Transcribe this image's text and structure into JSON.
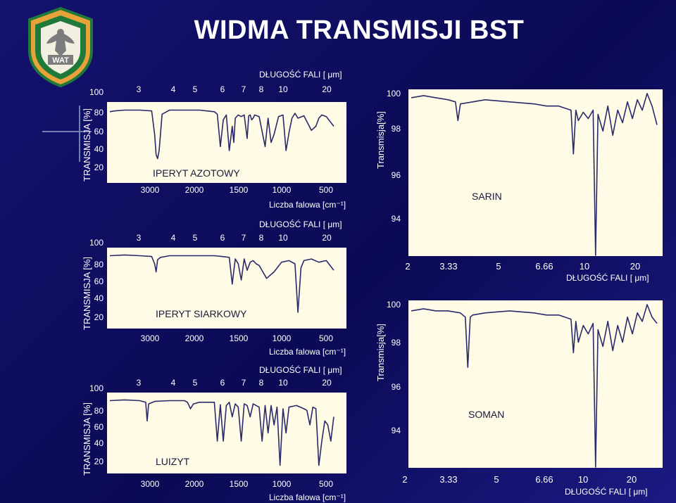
{
  "page": {
    "title": "WIDMA TRANSMISJI  BST",
    "logo_text": "WAT",
    "colors": {
      "background": "#0b0a55",
      "plot_bg": "#fffbe6",
      "trace": "#2a2a6a",
      "text": "#ffffff",
      "logo_green": "#1f7a3a",
      "logo_orange": "#e8a23a"
    }
  },
  "chart_data": [
    {
      "type": "line",
      "annotation": "IPERYT  AZOTOWY",
      "ylabel": "TRANSMISJA [%]",
      "yticks": [
        "100",
        "80",
        "60",
        "40",
        "20"
      ],
      "top_axis_title": "DŁUGOŚĆ  FALI [ μm]",
      "top_ticks": [
        "3",
        "4",
        "5",
        "6",
        "7",
        "8",
        "10",
        "20"
      ],
      "bottom_ticks": [
        "3000",
        "2000",
        "1500",
        "1000",
        "500"
      ],
      "xlabel": "Liczba falowa [cm⁻¹]",
      "ylim": [
        0,
        100
      ],
      "x": [
        0.0,
        0.03,
        0.1,
        0.2,
        0.28,
        0.3,
        0.31,
        0.32,
        0.33,
        0.35,
        0.38,
        0.4,
        0.5,
        0.6,
        0.65,
        0.7,
        0.72,
        0.74,
        0.76,
        0.78,
        0.8,
        0.82,
        0.83,
        0.84,
        0.86,
        0.88,
        0.9,
        0.92,
        0.93,
        0.94,
        0.95,
        0.96,
        0.97,
        1.0,
        1.04,
        1.06,
        1.08,
        1.1,
        1.13,
        1.16,
        1.18,
        1.2,
        1.22,
        1.24,
        1.26,
        1.3,
        1.35,
        1.38,
        1.4,
        1.42,
        1.45,
        1.5
      ],
      "y": [
        88,
        89,
        90,
        90,
        89,
        60,
        35,
        30,
        40,
        85,
        88,
        90,
        90,
        90,
        89,
        88,
        85,
        45,
        78,
        84,
        40,
        70,
        50,
        80,
        84,
        82,
        84,
        55,
        83,
        84,
        78,
        80,
        84,
        82,
        45,
        80,
        50,
        60,
        82,
        84,
        40,
        62,
        80,
        86,
        80,
        83,
        65,
        70,
        80,
        84,
        82,
        70
      ]
    },
    {
      "type": "line",
      "annotation": "IPERYT  SIARKOWY",
      "ylabel": "TRANSMISJA [%]",
      "yticks": [
        "100",
        "80",
        "60",
        "40",
        "20"
      ],
      "top_axis_title": "DŁUGOŚĆ  FALI [ μm]",
      "top_ticks": [
        "3",
        "4",
        "5",
        "6",
        "7",
        "8",
        "10",
        "20"
      ],
      "bottom_ticks": [
        "3000",
        "2000",
        "1500",
        "1000",
        "500"
      ],
      "xlabel": "Liczba falowa [cm⁻¹]",
      "ylim": [
        0,
        100
      ],
      "x": [
        0.0,
        0.1,
        0.2,
        0.28,
        0.3,
        0.31,
        0.32,
        0.34,
        0.4,
        0.5,
        0.6,
        0.7,
        0.75,
        0.8,
        0.82,
        0.84,
        0.86,
        0.88,
        0.9,
        0.92,
        0.94,
        0.96,
        0.98,
        1.0,
        1.05,
        1.1,
        1.15,
        1.2,
        1.24,
        1.26,
        1.28,
        1.3,
        1.35,
        1.4,
        1.45,
        1.5
      ],
      "y": [
        90,
        91,
        90,
        89,
        80,
        70,
        85,
        88,
        90,
        90,
        90,
        90,
        89,
        88,
        55,
        86,
        80,
        60,
        86,
        72,
        82,
        84,
        80,
        78,
        62,
        70,
        82,
        84,
        80,
        20,
        75,
        84,
        86,
        82,
        84,
        72
      ]
    },
    {
      "type": "line",
      "annotation": "LUIZYT",
      "ylabel": "TRANSMISJA [%]",
      "yticks": [
        "100",
        "80",
        "60",
        "40",
        "20"
      ],
      "top_axis_title": "DŁUGOŚĆ  FALI [ μm]",
      "top_ticks": [
        "3",
        "4",
        "5",
        "6",
        "7",
        "8",
        "10",
        "20"
      ],
      "bottom_ticks": [
        "3000",
        "2000",
        "1500",
        "1000",
        "500"
      ],
      "xlabel": "Liczba falowa [cm⁻¹]",
      "ylim": [
        0,
        100
      ],
      "x": [
        0.0,
        0.1,
        0.2,
        0.24,
        0.25,
        0.26,
        0.3,
        0.4,
        0.5,
        0.52,
        0.54,
        0.56,
        0.6,
        0.7,
        0.72,
        0.74,
        0.76,
        0.78,
        0.8,
        0.82,
        0.84,
        0.86,
        0.88,
        0.9,
        0.92,
        0.94,
        0.96,
        0.98,
        1.0,
        1.02,
        1.04,
        1.06,
        1.08,
        1.1,
        1.12,
        1.14,
        1.16,
        1.18,
        1.2,
        1.25,
        1.3,
        1.32,
        1.34,
        1.36,
        1.38,
        1.4,
        1.42,
        1.44,
        1.46,
        1.48,
        1.5
      ],
      "y": [
        90,
        91,
        90,
        88,
        65,
        86,
        89,
        90,
        90,
        88,
        80,
        86,
        88,
        88,
        40,
        85,
        40,
        84,
        88,
        70,
        86,
        82,
        40,
        86,
        84,
        70,
        86,
        84,
        82,
        40,
        84,
        50,
        84,
        60,
        82,
        10,
        80,
        50,
        82,
        84,
        80,
        78,
        60,
        82,
        80,
        10,
        40,
        65,
        60,
        40,
        70
      ]
    },
    {
      "type": "line",
      "annotation": "SARIN",
      "ylabel": "Transmisja[%]",
      "yticks": [
        "100",
        "98",
        "96",
        "94"
      ],
      "xticks": [
        "2",
        "3.33",
        "5",
        "6.66",
        "10",
        "20"
      ],
      "xlabel": "DŁUGOŚĆ  FALI [ μm]",
      "ylim": [
        92,
        100
      ],
      "x": [
        0.0,
        0.05,
        0.1,
        0.15,
        0.18,
        0.19,
        0.2,
        0.25,
        0.3,
        0.4,
        0.5,
        0.55,
        0.6,
        0.65,
        0.66,
        0.67,
        0.68,
        0.7,
        0.72,
        0.74,
        0.75,
        0.76,
        0.78,
        0.8,
        0.82,
        0.84,
        0.86,
        0.88,
        0.9,
        0.92,
        0.94,
        0.96,
        0.98,
        1.0
      ],
      "y": [
        99.6,
        99.7,
        99.6,
        99.5,
        99.4,
        98.5,
        99.3,
        99.4,
        99.5,
        99.4,
        99.3,
        99.2,
        99.2,
        99.0,
        96.9,
        99.0,
        98.5,
        98.9,
        98.6,
        99.0,
        92.0,
        98.8,
        98.0,
        99.2,
        97.8,
        99.0,
        98.4,
        99.4,
        98.6,
        99.5,
        99.0,
        99.8,
        99.2,
        98.3
      ]
    },
    {
      "type": "line",
      "annotation": "SOMAN",
      "ylabel": "Transmisja[%]",
      "yticks": [
        "100",
        "98",
        "96",
        "94"
      ],
      "xticks": [
        "2",
        "3.33",
        "5",
        "6.66",
        "10",
        "20"
      ],
      "xlabel": "DŁUGOŚĆ  FALI [ μm]",
      "ylim": [
        92,
        100
      ],
      "x": [
        0.0,
        0.05,
        0.1,
        0.15,
        0.2,
        0.22,
        0.23,
        0.24,
        0.25,
        0.3,
        0.4,
        0.5,
        0.55,
        0.6,
        0.65,
        0.66,
        0.67,
        0.68,
        0.7,
        0.72,
        0.74,
        0.75,
        0.76,
        0.78,
        0.8,
        0.82,
        0.84,
        0.86,
        0.88,
        0.9,
        0.92,
        0.94,
        0.96,
        0.98,
        1.0
      ],
      "y": [
        99.5,
        99.6,
        99.5,
        99.5,
        99.4,
        99.2,
        96.8,
        99.2,
        99.3,
        99.4,
        99.5,
        99.4,
        99.3,
        99.3,
        99.1,
        97.5,
        99.0,
        98.0,
        98.8,
        98.4,
        98.9,
        92.0,
        98.6,
        97.8,
        99.0,
        97.6,
        98.8,
        98.0,
        99.2,
        98.4,
        99.4,
        99.0,
        99.8,
        99.2,
        98.9
      ]
    }
  ]
}
